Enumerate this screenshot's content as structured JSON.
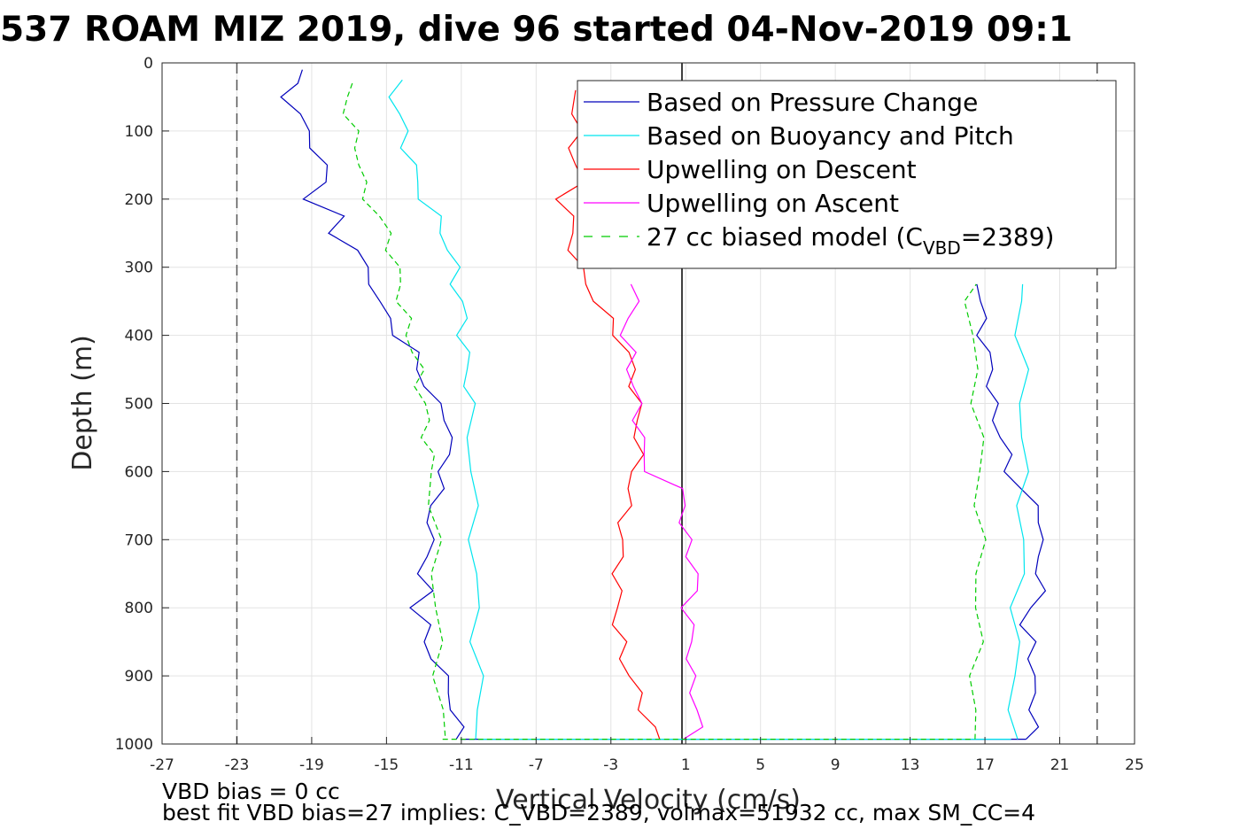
{
  "title": "537 ROAM MIZ 2019, dive 96 started 04-Nov-2019 09:1",
  "footnotes": {
    "line1": "VBD bias = 0 cc",
    "line2": "best fit VBD bias=27 implies: C_VBD=2389, volmax=51932 cc, max SM_CC=4"
  },
  "chart_data": {
    "type": "line",
    "xlabel": "Vertical Velocity (cm/s)",
    "ylabel": "Depth (m)",
    "xlim": [
      -27,
      25
    ],
    "ylim": [
      0,
      1000
    ],
    "y_reversed": true,
    "grid": true,
    "legend_position": "top-right",
    "xticks": [
      "-27",
      "-23",
      "-19",
      "-15",
      "-11",
      "-7",
      "-3",
      "1",
      "5",
      "9",
      "13",
      "17",
      "21",
      "25"
    ],
    "yticks": [
      "0",
      "100",
      "200",
      "300",
      "400",
      "500",
      "600",
      "700",
      "800",
      "900",
      "1000"
    ],
    "reference_lines": [
      {
        "orientation": "vertical",
        "x": -23,
        "style": "dashed",
        "color": "#555555"
      },
      {
        "orientation": "vertical",
        "x": 23,
        "style": "dashed",
        "color": "#555555"
      },
      {
        "orientation": "vertical",
        "x": 0.8,
        "style": "solid",
        "color": "#000000"
      }
    ],
    "series": [
      {
        "name": "Based on Pressure Change",
        "color": "#0000bb",
        "dash": "solid",
        "descent": {
          "depth": [
            10,
            30,
            50,
            75,
            100,
            125,
            150,
            175,
            200,
            225,
            250,
            275,
            300,
            325,
            350,
            375,
            400,
            425,
            450,
            475,
            500,
            525,
            550,
            575,
            600,
            625,
            650,
            675,
            700,
            725,
            750,
            775,
            800,
            825,
            850,
            875,
            900,
            925,
            950,
            975,
            993
          ],
          "velocity": [
            -19.5,
            -20.0,
            -20.3,
            -19.8,
            -19.2,
            -18.8,
            -18.5,
            -18.1,
            -19.3,
            -17.6,
            -17.8,
            -16.6,
            -16.2,
            -15.6,
            -15.6,
            -14.8,
            -14.4,
            -13.6,
            -13.2,
            -12.9,
            -12.4,
            -11.6,
            -11.6,
            -11.8,
            -11.9,
            -12.2,
            -12.6,
            -12.6,
            -12.8,
            -12.6,
            -13.3,
            -12.8,
            -13.4,
            -12.8,
            -13.1,
            -12.3,
            -12.0,
            -11.6,
            -11.4,
            -11.2,
            -11.0
          ]
        },
        "ascent": {
          "depth": [
            993,
            975,
            950,
            925,
            900,
            875,
            850,
            825,
            800,
            775,
            750,
            725,
            700,
            675,
            650,
            625,
            600,
            575,
            550,
            525,
            500,
            475,
            450,
            425,
            400,
            375,
            350,
            325
          ],
          "velocity": [
            19.2,
            19.6,
            19.7,
            19.5,
            19.6,
            19.6,
            19.4,
            19.0,
            19.6,
            19.9,
            20.0,
            19.8,
            19.9,
            20.2,
            19.6,
            18.9,
            18.3,
            18.1,
            18.0,
            17.5,
            17.4,
            17.4,
            17.3,
            17.1,
            16.9,
            16.8,
            16.8,
            16.8
          ]
        }
      },
      {
        "name": "Based on Buoyancy and Pitch",
        "color": "#00e5ee",
        "dash": "solid",
        "descent": {
          "depth": [
            25,
            50,
            75,
            100,
            125,
            150,
            175,
            200,
            225,
            250,
            275,
            300,
            325,
            350,
            375,
            400,
            425,
            450,
            475,
            500,
            550,
            600,
            650,
            700,
            750,
            800,
            850,
            900,
            950,
            993
          ],
          "velocity": [
            -14.5,
            -14.6,
            -14.3,
            -14.1,
            -13.9,
            -13.6,
            -13.4,
            -13.0,
            -12.4,
            -12.0,
            -11.6,
            -11.4,
            -11.3,
            -11.0,
            -10.9,
            -10.9,
            -10.8,
            -10.7,
            -10.6,
            -10.6,
            -10.5,
            -10.4,
            -10.4,
            -10.3,
            -10.3,
            -10.2,
            -10.2,
            -10.1,
            -10.1,
            -10.0
          ]
        },
        "ascent": {
          "depth": [
            993,
            950,
            900,
            850,
            800,
            750,
            700,
            650,
            600,
            550,
            500,
            450,
            400,
            350,
            325
          ],
          "velocity": [
            18.4,
            18.5,
            18.6,
            18.6,
            18.7,
            18.9,
            19.0,
            19.0,
            19.0,
            19.1,
            19.0,
            19.0,
            18.9,
            18.9,
            18.8
          ]
        }
      },
      {
        "name": "Upwelling on Descent",
        "color": "#ff0000",
        "dash": "solid",
        "descent": {
          "depth": [
            40,
            75,
            100,
            125,
            150,
            175,
            200,
            225,
            250,
            275,
            300,
            325,
            350,
            375,
            400,
            425,
            450,
            475,
            500,
            525,
            550,
            575,
            600,
            625,
            650,
            675,
            700,
            725,
            750,
            775,
            800,
            825,
            850,
            875,
            900,
            925,
            950,
            975,
            993
          ],
          "velocity": [
            -4.8,
            -4.9,
            -4.9,
            -5.0,
            -4.9,
            -4.7,
            -5.6,
            -5.2,
            -5.1,
            -5.0,
            -4.8,
            -4.2,
            -3.8,
            -3.2,
            -2.6,
            -2.1,
            -1.9,
            -1.7,
            -1.6,
            -1.6,
            -1.5,
            -1.6,
            -1.7,
            -2.0,
            -2.2,
            -2.3,
            -2.5,
            -2.5,
            -2.6,
            -2.7,
            -2.6,
            -2.7,
            -2.5,
            -2.3,
            -2.0,
            -1.6,
            -1.2,
            -0.8,
            -0.5
          ]
        },
        "ascent": null
      },
      {
        "name": "Upwelling on Ascent",
        "color": "#ff00ff",
        "dash": "solid",
        "descent": null,
        "ascent": {
          "depth": [
            993,
            975,
            950,
            925,
            900,
            875,
            850,
            825,
            800,
            775,
            750,
            725,
            700,
            675,
            650,
            625,
            600,
            575,
            550,
            525,
            500,
            475,
            450,
            425,
            400,
            375,
            350,
            325
          ],
          "velocity": [
            1.2,
            1.6,
            1.7,
            1.4,
            1.2,
            1.3,
            1.3,
            1.2,
            1.1,
            1.4,
            1.6,
            1.3,
            1.0,
            0.8,
            1.1,
            0.5,
            -0.9,
            -1.3,
            -1.4,
            -1.5,
            -1.6,
            -1.8,
            -1.9,
            -2.0,
            -2.3,
            -2.0,
            -1.8,
            -1.6
          ]
        }
      },
      {
        "name": "27 cc biased model (C_VBD=2389)",
        "color": "#00cc00",
        "dash": "dashed",
        "descent": {
          "depth": [
            30,
            50,
            75,
            100,
            125,
            150,
            175,
            200,
            225,
            250,
            275,
            300,
            325,
            350,
            375,
            400,
            425,
            450,
            475,
            500,
            525,
            550,
            575,
            600,
            650,
            700,
            750,
            800,
            850,
            900,
            950,
            993
          ],
          "velocity": [
            -17.0,
            -17.2,
            -17.0,
            -16.8,
            -16.6,
            -16.3,
            -16.4,
            -16.0,
            -15.4,
            -15.0,
            -14.7,
            -14.5,
            -14.3,
            -14.2,
            -14.0,
            -13.8,
            -13.5,
            -13.3,
            -13.2,
            -13.0,
            -12.9,
            -12.8,
            -12.7,
            -12.6,
            -12.5,
            -12.4,
            -12.4,
            -12.3,
            -12.3,
            -12.2,
            -12.1,
            -12.0
          ]
        },
        "ascent": {
          "depth": [
            993,
            950,
            900,
            850,
            800,
            750,
            700,
            650,
            600,
            550,
            500,
            450,
            400,
            350,
            325
          ],
          "velocity": [
            16.3,
            16.4,
            16.5,
            16.6,
            16.6,
            16.7,
            16.7,
            16.7,
            16.7,
            16.7,
            16.6,
            16.4,
            16.3,
            16.2,
            16.2
          ]
        }
      }
    ]
  }
}
